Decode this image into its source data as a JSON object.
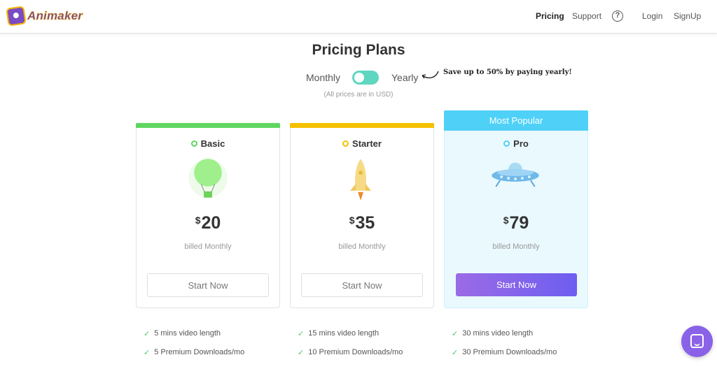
{
  "header": {
    "logo_text": "Animaker",
    "nav": {
      "pricing": "Pricing",
      "support": "Support",
      "help": "?",
      "login": "Login",
      "signup": "SignUp"
    }
  },
  "main": {
    "title": "Pricing Plans",
    "toggle": {
      "monthly_label": "Monthly",
      "yearly_label": "Yearly",
      "selected": "Monthly",
      "save_note": "Save up to 50% by paying yearly!"
    },
    "usd_note": "(All prices are in USD)",
    "plans": [
      {
        "name": "Basic",
        "currency": "$",
        "price": "20",
        "billed": "billed Monthly",
        "button": "Start Now",
        "accent": "#5fd660",
        "icon": "hot-air-balloon-icon",
        "features": [
          "5 mins video length",
          "5 Premium Downloads/mo"
        ]
      },
      {
        "name": "Starter",
        "currency": "$",
        "price": "35",
        "billed": "billed Monthly",
        "button": "Start Now",
        "accent": "#f5c000",
        "icon": "rocket-icon",
        "features": [
          "15 mins video length",
          "10 Premium Downloads/mo"
        ]
      },
      {
        "name": "Pro",
        "badge": "Most Popular",
        "currency": "$",
        "price": "79",
        "billed": "billed Monthly",
        "button": "Start Now",
        "accent": "#4fd1f7",
        "icon": "ufo-icon",
        "features": [
          "30 mins video length",
          "30 Premium Downloads/mo"
        ]
      }
    ]
  },
  "chat": {
    "icon": "chat-icon"
  }
}
